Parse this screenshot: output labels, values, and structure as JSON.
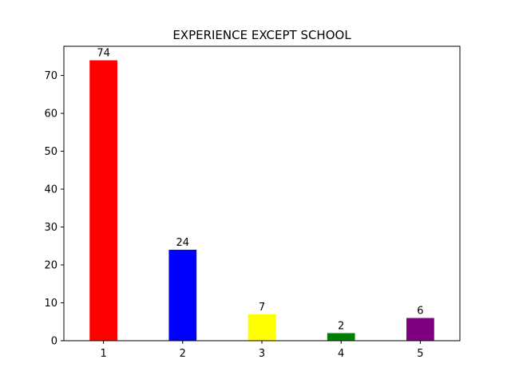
{
  "chart_data": {
    "type": "bar",
    "title": "EXPERIENCE EXCEPT SCHOOL",
    "xlabel": "",
    "ylabel": "",
    "categories": [
      "1",
      "2",
      "3",
      "4",
      "5"
    ],
    "values": [
      74,
      24,
      7,
      2,
      6
    ],
    "data_labels": [
      "74",
      "24",
      "7",
      "2",
      "6"
    ],
    "colors": [
      "#ff0000",
      "#0000ff",
      "#ffff00",
      "#008000",
      "#800080"
    ],
    "ylim": [
      0,
      77.7
    ],
    "yticks": [
      0,
      10,
      20,
      30,
      40,
      50,
      60,
      70
    ],
    "ytick_labels": [
      "0",
      "10",
      "20",
      "30",
      "40",
      "50",
      "60",
      "70"
    ],
    "grid": false,
    "legend": "none"
  }
}
